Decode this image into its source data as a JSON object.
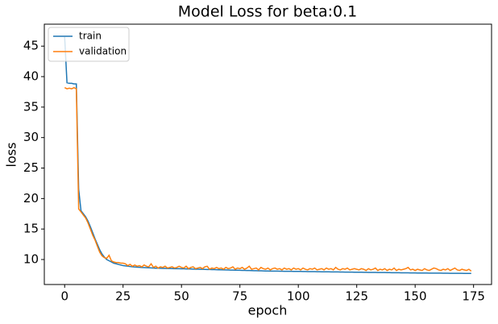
{
  "chart_data": {
    "type": "line",
    "title": "Model Loss for beta:0.1",
    "xlabel": "epoch",
    "ylabel": "loss",
    "x": [
      0,
      1,
      2,
      3,
      4,
      5,
      6,
      7,
      8,
      9,
      10,
      11,
      12,
      13,
      14,
      15,
      16,
      17,
      18,
      19,
      20,
      21,
      22,
      23,
      24,
      25,
      26,
      27,
      28,
      29,
      30,
      31,
      32,
      33,
      34,
      35,
      36,
      37,
      38,
      39,
      40,
      41,
      42,
      43,
      44,
      45,
      46,
      47,
      48,
      49,
      50,
      51,
      52,
      53,
      54,
      55,
      56,
      57,
      58,
      59,
      60,
      61,
      62,
      63,
      64,
      65,
      66,
      67,
      68,
      69,
      70,
      71,
      72,
      73,
      74,
      75,
      76,
      77,
      78,
      79,
      80,
      81,
      82,
      83,
      84,
      85,
      86,
      87,
      88,
      89,
      90,
      91,
      92,
      93,
      94,
      95,
      96,
      97,
      98,
      99,
      100,
      101,
      102,
      103,
      104,
      105,
      106,
      107,
      108,
      109,
      110,
      111,
      112,
      113,
      114,
      115,
      116,
      117,
      118,
      119,
      120,
      121,
      122,
      123,
      124,
      125,
      126,
      127,
      128,
      129,
      130,
      131,
      132,
      133,
      134,
      135,
      136,
      137,
      138,
      139,
      140,
      141,
      142,
      143,
      144,
      145,
      146,
      147,
      148,
      149,
      150,
      151,
      152,
      153,
      154,
      155,
      156,
      157,
      158,
      159,
      160,
      161,
      162,
      163,
      164,
      165,
      166,
      167,
      168,
      169,
      170,
      171,
      172,
      173,
      174
    ],
    "series": [
      {
        "name": "train",
        "color": "#1f77b4",
        "values": [
          46.5,
          39.0,
          38.9,
          38.9,
          38.8,
          38.8,
          21.5,
          18.0,
          17.5,
          17.0,
          16.3,
          15.4,
          14.4,
          13.4,
          12.5,
          11.6,
          10.9,
          10.4,
          10.0,
          9.8,
          9.6,
          9.4,
          9.3,
          9.2,
          9.1,
          9.0,
          8.95,
          8.9,
          8.85,
          8.8,
          8.78,
          8.75,
          8.72,
          8.7,
          8.68,
          8.66,
          8.64,
          8.62,
          8.6,
          8.58,
          8.57,
          8.56,
          8.55,
          8.54,
          8.53,
          8.52,
          8.51,
          8.5,
          8.5,
          8.49,
          8.48,
          8.47,
          8.46,
          8.45,
          8.44,
          8.43,
          8.42,
          8.41,
          8.4,
          8.39,
          8.38,
          8.37,
          8.36,
          8.35,
          8.34,
          8.33,
          8.32,
          8.31,
          8.3,
          8.29,
          8.28,
          8.27,
          8.26,
          8.25,
          8.24,
          8.23,
          8.22,
          8.21,
          8.2,
          8.19,
          8.18,
          8.17,
          8.16,
          8.15,
          8.14,
          8.13,
          8.12,
          8.11,
          8.1,
          8.1,
          8.09,
          8.09,
          8.08,
          8.08,
          8.07,
          8.07,
          8.06,
          8.06,
          8.05,
          8.05,
          8.04,
          8.04,
          8.03,
          8.03,
          8.02,
          8.02,
          8.01,
          8.01,
          8.0,
          8.0,
          7.99,
          7.99,
          7.98,
          7.98,
          7.97,
          7.97,
          7.96,
          7.96,
          7.95,
          7.95,
          7.94,
          7.94,
          7.93,
          7.93,
          7.92,
          7.92,
          7.91,
          7.91,
          7.9,
          7.9,
          7.89,
          7.89,
          7.88,
          7.88,
          7.87,
          7.87,
          7.86,
          7.86,
          7.85,
          7.85,
          7.84,
          7.84,
          7.83,
          7.83,
          7.82,
          7.82,
          7.81,
          7.81,
          7.8,
          7.8,
          7.8,
          7.79,
          7.79,
          7.78,
          7.78,
          7.78,
          7.77,
          7.77,
          7.77,
          7.76,
          7.76,
          7.76,
          7.75,
          7.75,
          7.75,
          7.74,
          7.74,
          7.74,
          7.73,
          7.73,
          7.73,
          7.72,
          7.72,
          7.72,
          7.71
        ]
      },
      {
        "name": "validation",
        "color": "#ff7f0e",
        "values": [
          38.2,
          38.0,
          38.1,
          38.0,
          38.2,
          38.0,
          18.3,
          17.8,
          17.3,
          16.8,
          16.0,
          15.0,
          14.0,
          13.2,
          12.2,
          11.2,
          10.6,
          10.3,
          10.2,
          10.7,
          9.8,
          9.6,
          9.5,
          9.5,
          9.4,
          9.4,
          9.3,
          9.0,
          9.2,
          8.9,
          9.1,
          8.9,
          9.0,
          8.8,
          9.1,
          8.9,
          8.8,
          9.3,
          8.7,
          8.9,
          8.6,
          8.8,
          8.7,
          8.9,
          8.6,
          8.7,
          8.8,
          8.6,
          8.7,
          8.9,
          8.7,
          8.6,
          8.9,
          8.5,
          8.7,
          8.8,
          8.5,
          8.6,
          8.7,
          8.5,
          8.8,
          8.9,
          8.4,
          8.6,
          8.5,
          8.7,
          8.5,
          8.6,
          8.4,
          8.7,
          8.5,
          8.6,
          8.8,
          8.4,
          8.6,
          8.5,
          8.7,
          8.4,
          8.6,
          8.9,
          8.4,
          8.5,
          8.6,
          8.3,
          8.7,
          8.5,
          8.4,
          8.6,
          8.3,
          8.5,
          8.6,
          8.4,
          8.5,
          8.3,
          8.6,
          8.4,
          8.5,
          8.3,
          8.6,
          8.4,
          8.5,
          8.3,
          8.6,
          8.4,
          8.3,
          8.5,
          8.4,
          8.6,
          8.3,
          8.4,
          8.5,
          8.3,
          8.6,
          8.4,
          8.5,
          8.3,
          8.7,
          8.4,
          8.3,
          8.5,
          8.4,
          8.6,
          8.3,
          8.4,
          8.5,
          8.4,
          8.3,
          8.5,
          8.4,
          8.2,
          8.5,
          8.3,
          8.4,
          8.6,
          8.2,
          8.4,
          8.3,
          8.5,
          8.2,
          8.4,
          8.3,
          8.6,
          8.2,
          8.4,
          8.3,
          8.4,
          8.5,
          8.7,
          8.3,
          8.4,
          8.2,
          8.4,
          8.3,
          8.2,
          8.5,
          8.3,
          8.2,
          8.4,
          8.6,
          8.5,
          8.3,
          8.2,
          8.4,
          8.3,
          8.5,
          8.2,
          8.4,
          8.6,
          8.3,
          8.2,
          8.4,
          8.3,
          8.2,
          8.4,
          8.1
        ]
      }
    ],
    "xlim": [
      -8.7,
      182.7
    ],
    "xticks": [
      0,
      25,
      50,
      75,
      100,
      125,
      150,
      175
    ],
    "ylim": [
      5.9,
      48.6
    ],
    "yticks": [
      10,
      15,
      20,
      25,
      30,
      35,
      40,
      45
    ],
    "grid": false,
    "legend": "upper left"
  }
}
